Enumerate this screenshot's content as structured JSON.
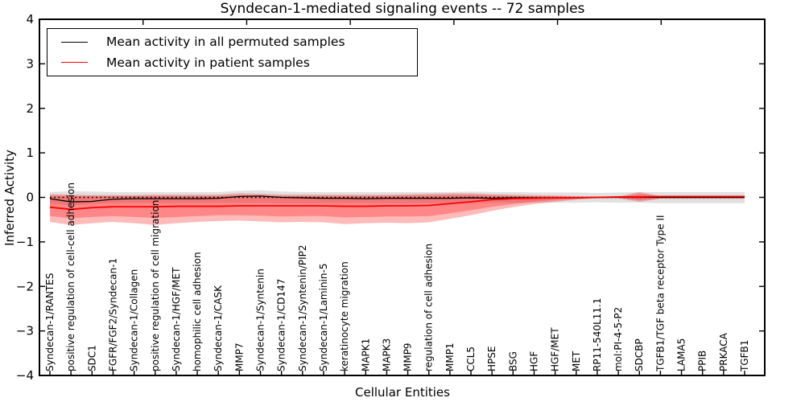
{
  "title": "Syndecan-1-mediated signaling events -- 72 samples",
  "axes": {
    "ylabel": "Inferred Activity",
    "xlabel": "Cellular Entities"
  },
  "legend": {
    "items": [
      {
        "label": "Mean activity in all permuted samples",
        "color": "#000000"
      },
      {
        "label": "Mean activity in patient samples",
        "color": "#ff0000"
      }
    ]
  },
  "chart_data": {
    "type": "line",
    "title": "Syndecan-1-mediated signaling events -- 72 samples",
    "xlabel": "Cellular Entities",
    "ylabel": "Inferred Activity",
    "ylim": [
      -4,
      4
    ],
    "grid": false,
    "legend_position": "upper left",
    "yticks": {
      "values": [
        4,
        3,
        2,
        1,
        0,
        -1,
        -2,
        -3,
        -4
      ],
      "labels": [
        "4",
        "3",
        "2",
        "1",
        "0",
        "−1",
        "−2",
        "−3",
        "−4"
      ]
    },
    "categories": [
      "Syndecan-1/RANTES",
      "positive regulation of cell-cell adhesion",
      "SDC1",
      "FGFR/FGF2/Syndecan-1",
      "Syndecan-1/Collagen",
      "positive regulation of cell migration",
      "Syndecan-1/HGF/MET",
      "homophilic cell adhesion",
      "Syndecan-1/CASK",
      "MMP7",
      "Syndecan-1/Syntenin",
      "Syndecan-1/CD147",
      "Syndecan-1/Syntenin/PIP2",
      "Syndecan-1/Laminin-5",
      "keratinocyte migration",
      "MAPK1",
      "MAPK3",
      "MMP9",
      "regulation of cell adhesion",
      "MMP1",
      "CCL5",
      "HPSE",
      "BSG",
      "HGF",
      "HGF/MET",
      "MET",
      "RP11-540L11.1",
      "mol:PI-4-5-P2",
      "SDCBP",
      "TGFB1/TGF beta receptor Type II",
      "LAMA5",
      "PPIB",
      "PRKACA",
      "TGFB1"
    ],
    "series": [
      {
        "name": "Mean activity in all permuted samples",
        "color": "#000000",
        "width": 1.3,
        "values": [
          -0.03,
          -0.1,
          -0.09,
          -0.04,
          -0.03,
          -0.03,
          -0.03,
          -0.03,
          -0.02,
          0.02,
          0.03,
          0.0,
          -0.01,
          -0.02,
          -0.02,
          -0.03,
          -0.02,
          -0.02,
          -0.02,
          -0.02,
          -0.01,
          -0.02,
          -0.01,
          -0.01,
          -0.01,
          -0.01,
          0.0,
          0.0,
          0.0,
          0.0,
          0.0,
          0.0,
          0.0,
          0.0
        ]
      },
      {
        "name": "Mean activity in patient samples",
        "color": "#ff0000",
        "width": 1.8,
        "values": [
          -0.22,
          -0.27,
          -0.23,
          -0.21,
          -0.21,
          -0.21,
          -0.2,
          -0.2,
          -0.2,
          -0.19,
          -0.19,
          -0.19,
          -0.19,
          -0.19,
          -0.2,
          -0.2,
          -0.19,
          -0.19,
          -0.18,
          -0.14,
          -0.1,
          -0.05,
          -0.03,
          -0.02,
          -0.01,
          -0.01,
          0.0,
          0.01,
          0.01,
          0.02,
          0.02,
          0.02,
          0.02,
          0.02
        ]
      }
    ],
    "bands": [
      {
        "name": "permuted-samples-range",
        "color": "#888888",
        "opacity": 0.25,
        "top": [
          0.12,
          0.14,
          0.13,
          0.12,
          0.12,
          0.12,
          0.12,
          0.12,
          0.12,
          0.15,
          0.16,
          0.13,
          0.12,
          0.12,
          0.12,
          0.12,
          0.12,
          0.12,
          0.12,
          0.12,
          0.13,
          0.12,
          0.12,
          0.11,
          0.11,
          0.11,
          0.1,
          0.11,
          0.12,
          0.12,
          0.12,
          0.12,
          0.12,
          0.12
        ],
        "bottom": [
          -0.14,
          -0.18,
          -0.15,
          -0.13,
          -0.13,
          -0.13,
          -0.13,
          -0.13,
          -0.13,
          -0.12,
          -0.12,
          -0.13,
          -0.13,
          -0.13,
          -0.13,
          -0.13,
          -0.13,
          -0.13,
          -0.13,
          -0.13,
          -0.13,
          -0.12,
          -0.12,
          -0.12,
          -0.12,
          -0.12,
          -0.11,
          -0.12,
          -0.12,
          -0.13,
          -0.13,
          -0.13,
          -0.13,
          -0.13
        ]
      },
      {
        "name": "patient-samples-outer-range",
        "color": "#ff0000",
        "opacity": 0.27,
        "top": [
          0.07,
          0.06,
          0.05,
          0.05,
          0.05,
          0.06,
          0.06,
          0.06,
          0.06,
          0.09,
          0.08,
          0.06,
          0.06,
          0.06,
          0.06,
          0.06,
          0.06,
          0.07,
          0.08,
          0.09,
          0.09,
          0.07,
          0.06,
          0.05,
          0.04,
          0.03,
          0.02,
          0.02,
          0.12,
          0.03,
          0.03,
          0.03,
          0.03,
          0.03
        ],
        "bottom": [
          -0.55,
          -0.62,
          -0.58,
          -0.55,
          -0.58,
          -0.62,
          -0.58,
          -0.55,
          -0.53,
          -0.52,
          -0.54,
          -0.56,
          -0.55,
          -0.56,
          -0.6,
          -0.58,
          -0.57,
          -0.58,
          -0.56,
          -0.48,
          -0.4,
          -0.3,
          -0.22,
          -0.15,
          -0.1,
          -0.05,
          -0.02,
          -0.02,
          -0.1,
          -0.03,
          -0.03,
          -0.03,
          -0.03,
          -0.03
        ]
      },
      {
        "name": "patient-samples-inner-range",
        "color": "#ff0000",
        "opacity": 0.27,
        "top": [
          0.04,
          0.03,
          0.03,
          0.03,
          0.03,
          0.03,
          0.03,
          0.03,
          0.03,
          0.05,
          0.04,
          0.03,
          0.03,
          0.03,
          0.03,
          0.03,
          0.03,
          0.04,
          0.04,
          0.05,
          0.05,
          0.04,
          0.03,
          0.02,
          0.02,
          0.01,
          0.01,
          0.01,
          0.08,
          0.02,
          0.02,
          0.02,
          0.02,
          0.02
        ],
        "bottom": [
          -0.42,
          -0.47,
          -0.44,
          -0.42,
          -0.44,
          -0.46,
          -0.44,
          -0.42,
          -0.4,
          -0.4,
          -0.41,
          -0.43,
          -0.42,
          -0.42,
          -0.45,
          -0.44,
          -0.43,
          -0.43,
          -0.42,
          -0.36,
          -0.29,
          -0.21,
          -0.15,
          -0.1,
          -0.06,
          -0.03,
          -0.01,
          -0.01,
          -0.06,
          -0.02,
          -0.02,
          -0.02,
          -0.02,
          -0.02
        ]
      }
    ],
    "zero_line": {
      "value": 0,
      "style": "dotted",
      "color": "#000000"
    }
  }
}
